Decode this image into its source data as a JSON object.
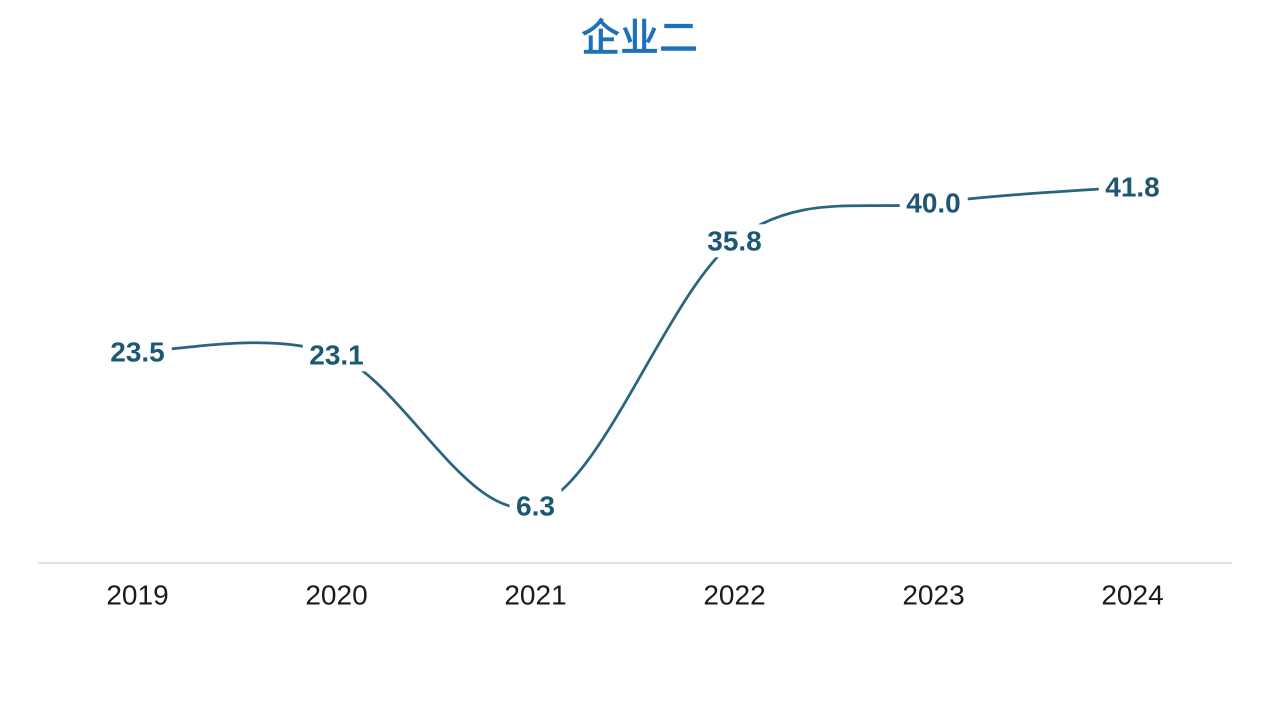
{
  "chart_data": {
    "type": "line",
    "title": "企业二",
    "categories": [
      "2019",
      "2020",
      "2021",
      "2022",
      "2023",
      "2024"
    ],
    "values": [
      23.5,
      23.1,
      6.3,
      35.8,
      40.0,
      41.8
    ],
    "data_labels": [
      "23.5",
      "23.1",
      "6.3",
      "35.8",
      "40.0",
      "41.8"
    ],
    "series_name": "企业二",
    "xlabel": "",
    "ylabel": "",
    "ylim": [
      0,
      45
    ],
    "smooth": true,
    "grid": false,
    "legend": "none",
    "y_axis_visible": false,
    "x_axis_line_visible": true,
    "colors": {
      "title": "#1E70B8",
      "line": "#29657F",
      "data_label": "#1D5873",
      "axis_label": "#1A1A1A",
      "axis_line": "#D9D9D9",
      "background": "#FFFFFF"
    }
  }
}
